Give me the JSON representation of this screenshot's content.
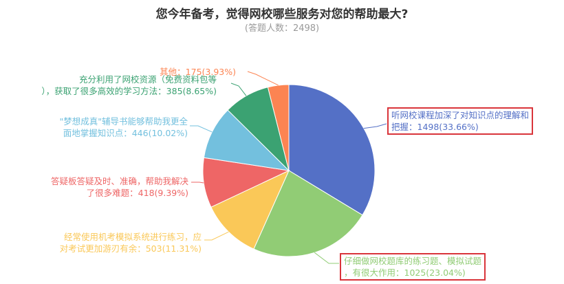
{
  "chart_data": {
    "type": "pie",
    "title": "您今年备考，觉得网校哪些服务对您的帮助最大?",
    "subtitle": "(答题人数：2498)",
    "total": 2498,
    "slices": [
      {
        "line1": "听网校课程加深了对知识点的理解和",
        "line2": "把握：1498(33.66%)",
        "value": 1498,
        "percent": 33.66,
        "color": "#5470c6"
      },
      {
        "line1": "仔细做网校题库的练习题、模拟试题",
        "line2": "，有很大作用：1025(23.04%)",
        "value": 1025,
        "percent": 23.04,
        "color": "#91cc75"
      },
      {
        "line1": "经常使用机考模拟系统进行练习，应",
        "line2": "对考试更加游刃有余：503(11.31%)",
        "value": 503,
        "percent": 11.31,
        "color": "#fac858"
      },
      {
        "line1": "答疑板答疑及时、准确，帮助我解决",
        "line2": "了很多难题：418(9.39%)",
        "value": 418,
        "percent": 9.39,
        "color": "#ee6666"
      },
      {
        "line1": "\"梦想成真\"辅导书能够帮助我更全",
        "line2": "面地掌握知识点：446(10.02%)",
        "value": 446,
        "percent": 10.02,
        "color": "#73c0de"
      },
      {
        "line1": "充分利用了网校资源（免费资料包等",
        "line2": "），获取了很多高效的学习方法：385(8.65%)",
        "value": 385,
        "percent": 8.65,
        "color": "#3ba272"
      },
      {
        "line1": "其他：175(3.93%)",
        "line2": "",
        "value": 175,
        "percent": 3.93,
        "color": "#fc8452"
      }
    ]
  }
}
